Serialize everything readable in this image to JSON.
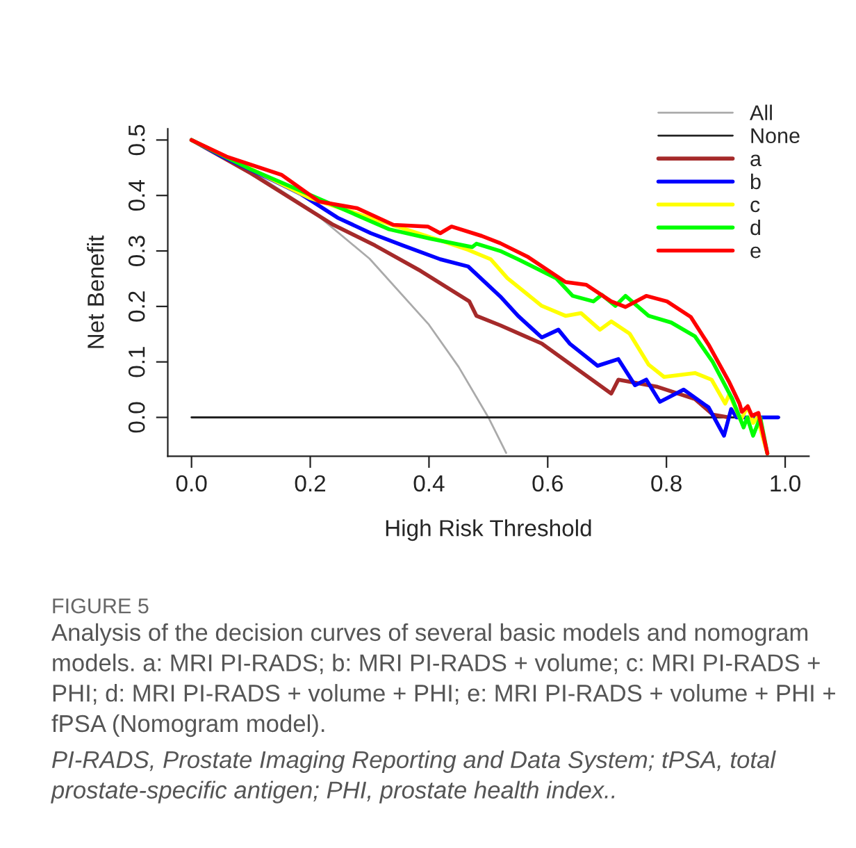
{
  "chart_data": {
    "type": "line",
    "xlabel": "High Risk Threshold",
    "ylabel": "Net Benefit",
    "xlim": [
      -0.04,
      1.04
    ],
    "ylim": [
      -0.07,
      0.52
    ],
    "xticks": [
      {
        "value": 0,
        "label": "0.0"
      },
      0.2,
      0.4,
      0.6,
      0.8,
      {
        "value": 1,
        "label": "1.0"
      }
    ],
    "yticks": [
      {
        "value": 0,
        "label": "0.0"
      },
      0.1,
      0.2,
      0.3,
      0.4,
      0.5
    ],
    "grid": false,
    "legend": "top right",
    "marker": "none",
    "line_style": "solid",
    "series": [
      {
        "name": "All",
        "color": "#aaaaaa",
        "x": [
          0,
          0.1,
          0.2,
          0.3,
          0.4,
          0.45,
          0.5,
          0.53
        ],
        "values": [
          0.5,
          0.444,
          0.375,
          0.286,
          0.167,
          0.091,
          0.0,
          -0.064
        ]
      },
      {
        "name": "None",
        "color": "#222222",
        "x": [
          0,
          0.99
        ],
        "values": [
          0,
          0
        ]
      },
      {
        "name": "a",
        "color": "#a52a2a",
        "x": [
          0,
          0.1,
          0.239,
          0.309,
          0.386,
          0.468,
          0.48,
          0.52,
          0.59,
          0.707,
          0.719,
          0.785,
          0.848,
          0.878,
          0.905
        ],
        "values": [
          0.5,
          0.44,
          0.347,
          0.31,
          0.264,
          0.209,
          0.183,
          0.166,
          0.133,
          0.043,
          0.068,
          0.055,
          0.033,
          0.005,
          0
        ]
      },
      {
        "name": "b",
        "color": "#0000ff",
        "x": [
          0,
          0.052,
          0.138,
          0.185,
          0.246,
          0.302,
          0.356,
          0.419,
          0.466,
          0.52,
          0.55,
          0.59,
          0.618,
          0.637,
          0.684,
          0.719,
          0.747,
          0.766,
          0.789,
          0.829,
          0.871,
          0.897,
          0.909,
          0.918,
          0.988
        ],
        "values": [
          0.5,
          0.47,
          0.427,
          0.402,
          0.36,
          0.332,
          0.31,
          0.285,
          0.272,
          0.218,
          0.183,
          0.144,
          0.158,
          0.133,
          0.093,
          0.105,
          0.058,
          0.068,
          0.028,
          0.05,
          0.018,
          -0.033,
          0.015,
          0,
          0
        ]
      },
      {
        "name": "c",
        "color": "#ffff00",
        "x": [
          0,
          0.1,
          0.2,
          0.3,
          0.419,
          0.466,
          0.504,
          0.532,
          0.59,
          0.63,
          0.656,
          0.688,
          0.707,
          0.738,
          0.77,
          0.796,
          0.848,
          0.876,
          0.899,
          0.906,
          0.925,
          0.937,
          0.946,
          0.953,
          0.97
        ],
        "values": [
          0.5,
          0.448,
          0.395,
          0.36,
          0.319,
          0.302,
          0.285,
          0.251,
          0.201,
          0.183,
          0.188,
          0.158,
          0.173,
          0.151,
          0.095,
          0.073,
          0.08,
          0.068,
          0.025,
          0.042,
          -0.005,
          0.02,
          -0.01,
          0.0,
          -0.065
        ]
      },
      {
        "name": "d",
        "color": "#00ff00",
        "x": [
          0,
          0.1,
          0.215,
          0.333,
          0.403,
          0.473,
          0.48,
          0.52,
          0.55,
          0.614,
          0.642,
          0.677,
          0.691,
          0.714,
          0.731,
          0.77,
          0.808,
          0.848,
          0.878,
          0.911,
          0.93,
          0.936,
          0.946,
          0.958,
          0.97
        ],
        "values": [
          0.5,
          0.447,
          0.394,
          0.339,
          0.322,
          0.307,
          0.313,
          0.3,
          0.285,
          0.251,
          0.219,
          0.209,
          0.221,
          0.201,
          0.219,
          0.183,
          0.171,
          0.146,
          0.1,
          0.033,
          -0.018,
          0,
          -0.033,
          0.0,
          -0.065
        ]
      },
      {
        "name": "e",
        "color": "#ff0000",
        "x": [
          0,
          0.059,
          0.152,
          0.215,
          0.279,
          0.34,
          0.398,
          0.419,
          0.438,
          0.489,
          0.52,
          0.567,
          0.63,
          0.665,
          0.707,
          0.731,
          0.766,
          0.801,
          0.841,
          0.871,
          0.906,
          0.923,
          0.927,
          0.937,
          0.944,
          0.955,
          0.97
        ],
        "values": [
          0.5,
          0.47,
          0.437,
          0.389,
          0.377,
          0.347,
          0.344,
          0.332,
          0.344,
          0.327,
          0.314,
          0.289,
          0.244,
          0.239,
          0.209,
          0.199,
          0.219,
          0.209,
          0.181,
          0.131,
          0.063,
          0.025,
          0.01,
          0.02,
          0.003,
          0.008,
          -0.065
        ]
      }
    ],
    "annotations": [
      "FIGURE 5",
      "Analysis of the decision curves of several basic models and nomogram models. a: MRI PI-RADS; b: MRI PI-RADS + volume; c: MRI PI-RADS + PHI; d: MRI PI-RADS + volume + PHI; e: MRI PI-RADS + volume + PHI + fPSA (Nomogram model).",
      "PI-RADS, Prostate Imaging Reporting and Data System; tPSA, total prostate-specific antigen; PHI, prostate health index.."
    ]
  }
}
